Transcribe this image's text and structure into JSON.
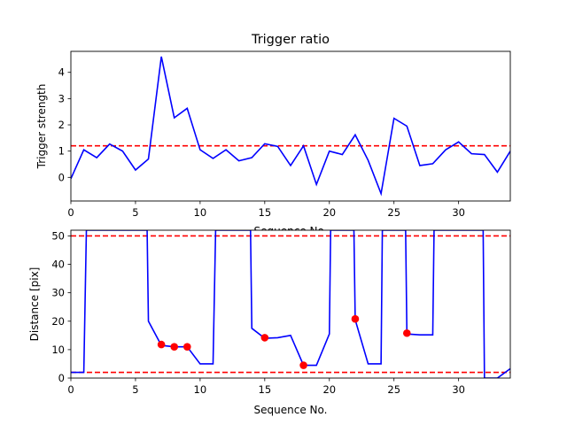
{
  "chart_data": [
    {
      "type": "line",
      "title": "Trigger ratio",
      "xlabel": "Sequence No.",
      "ylabel": "Trigger strength",
      "xlim": [
        0,
        34
      ],
      "ylim": [
        -0.9,
        4.8
      ],
      "xticks": [
        0,
        5,
        10,
        15,
        20,
        25,
        30
      ],
      "yticks": [
        0,
        1,
        2,
        3,
        4
      ],
      "grid": false,
      "series": [
        {
          "color": "#0000ff",
          "x": [
            0,
            1,
            2,
            3,
            4,
            5,
            6,
            7,
            8,
            9,
            10,
            11,
            12,
            13,
            14,
            15,
            16,
            17,
            18,
            19,
            20,
            21,
            22,
            23,
            24,
            25,
            26,
            27,
            28,
            29,
            30,
            31,
            32,
            33,
            34
          ],
          "y": [
            -0.05,
            1.05,
            0.75,
            1.27,
            1.0,
            0.28,
            0.7,
            4.6,
            2.27,
            2.63,
            1.05,
            0.72,
            1.05,
            0.63,
            0.75,
            1.28,
            1.18,
            0.45,
            1.2,
            -0.27,
            1.0,
            0.87,
            1.62,
            0.65,
            -0.62,
            2.25,
            1.95,
            0.45,
            0.52,
            1.05,
            1.35,
            0.9,
            0.87,
            0.2,
            1.0
          ]
        }
      ],
      "hlines": [
        {
          "y": 1.2,
          "color": "#ff0000",
          "style": "dashed"
        }
      ]
    },
    {
      "type": "line",
      "title": "",
      "xlabel": "Sequence No.",
      "ylabel": "Distance [pix]",
      "xlim": [
        0,
        34
      ],
      "ylim": [
        0,
        52
      ],
      "xticks": [
        0,
        5,
        10,
        15,
        20,
        25,
        30
      ],
      "yticks": [
        0,
        10,
        20,
        30,
        40,
        50
      ],
      "grid": false,
      "series": [
        {
          "color": "#0000ff",
          "x": [
            0,
            1,
            1.2,
            5.9,
            6,
            7,
            8,
            9,
            10,
            11,
            11.2,
            13.9,
            14,
            15,
            16,
            17,
            18,
            19,
            20,
            20.1,
            21.9,
            22,
            23,
            24,
            24.1,
            25.9,
            26,
            27,
            28,
            28.1,
            31.9,
            32,
            33,
            34
          ],
          "y": [
            2,
            2,
            52,
            52,
            20,
            11.5,
            11,
            11,
            5,
            5,
            52,
            52,
            17.5,
            14,
            14.2,
            15,
            4.5,
            4.5,
            15.5,
            52,
            52,
            20.5,
            5,
            5,
            52,
            52,
            15.5,
            15.2,
            15.2,
            52,
            52,
            0,
            0,
            3.3
          ]
        }
      ],
      "markers": {
        "color": "#ff0000",
        "x": [
          7,
          8,
          9,
          15,
          18,
          22,
          26
        ],
        "y": [
          11.8,
          11.0,
          11.0,
          14.2,
          4.5,
          20.8,
          15.8
        ]
      },
      "hlines": [
        {
          "y": 50,
          "color": "#ff0000",
          "style": "dashed"
        },
        {
          "y": 2,
          "color": "#ff0000",
          "style": "dashed"
        }
      ]
    }
  ]
}
